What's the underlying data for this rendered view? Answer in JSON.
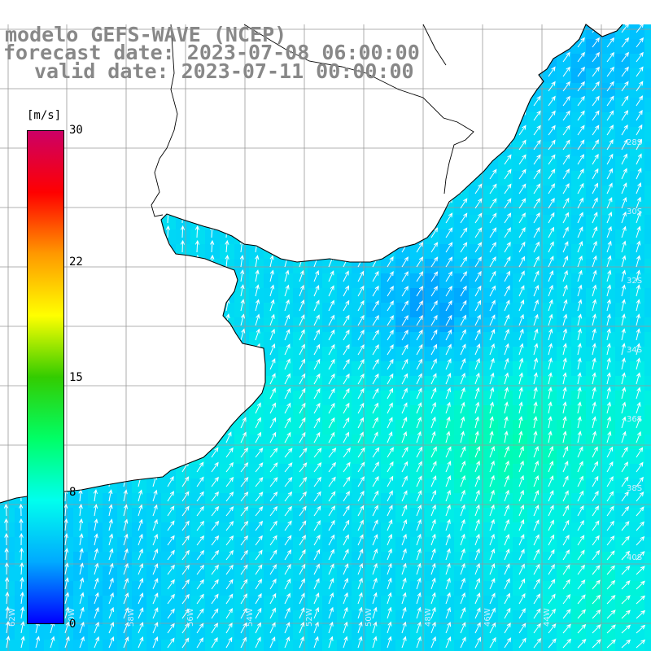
{
  "title": {
    "line1": "modelo GEFS-WAVE (NCEP)",
    "line2": "forecast date: 2023-07-08 06:00:00",
    "line3": "valid date: 2023-07-11 00:00:00"
  },
  "colorbar": {
    "unit": "[m/s]",
    "ticks": [
      "30",
      "22",
      "15",
      "8",
      "0"
    ],
    "tick_values": [
      30,
      22,
      15,
      8,
      0
    ],
    "min": 0,
    "max": 30,
    "stops": [
      "#0000ff",
      "#00aaff",
      "#00ffee",
      "#00ff66",
      "#33cc00",
      "#ffff00",
      "#ff9900",
      "#ff0000",
      "#cc0066"
    ]
  },
  "map": {
    "field": "wind speed",
    "grid_labels_lon": [
      "62W",
      "60W",
      "58W",
      "56W",
      "54W",
      "52W",
      "50W",
      "48W",
      "46W",
      "44W"
    ],
    "grid_labels_lat": [
      "28S",
      "30S",
      "32S",
      "34S",
      "36S",
      "38S",
      "40S"
    ],
    "colors": {
      "land": "#ffffff",
      "coast": "#000000",
      "grid": "#999999",
      "arrow": "#ffffff"
    }
  }
}
